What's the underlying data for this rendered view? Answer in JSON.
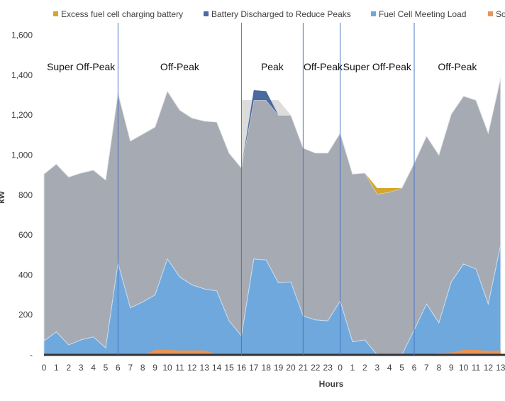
{
  "chart_data": {
    "type": "area",
    "xlabel": "Hours",
    "ylabel": "kW",
    "ylim": [
      0,
      1700
    ],
    "yticks": [
      0,
      200,
      400,
      600,
      800,
      1000,
      1200,
      1400,
      1600
    ],
    "ytick_labels": [
      "-",
      "200",
      "400",
      "600",
      "800",
      "1,000",
      "1,200",
      "1,400",
      "1,600"
    ],
    "grid": false,
    "legend_position": "top",
    "x": [
      "0",
      "1",
      "2",
      "3",
      "4",
      "5",
      "6",
      "7",
      "8",
      "9",
      "10",
      "11",
      "12",
      "13",
      "14",
      "15",
      "16",
      "17",
      "18",
      "19",
      "20",
      "21",
      "22",
      "23",
      "0",
      "1",
      "2",
      "3",
      "4",
      "5",
      "6",
      "7",
      "8",
      "9",
      "10",
      "11",
      "12",
      "13"
    ],
    "series": [
      {
        "name": "Excess fuel cell charging battery",
        "color": "#d4a72c",
        "values": [
          0,
          0,
          0,
          0,
          0,
          0,
          0,
          0,
          0,
          0,
          0,
          0,
          0,
          0,
          0,
          0,
          0,
          0,
          0,
          0,
          0,
          0,
          0,
          0,
          0,
          0,
          0,
          30,
          20,
          0,
          0,
          0,
          0,
          0,
          0,
          0,
          0,
          0
        ]
      },
      {
        "name": "Battery Discharged to Reduce Peaks",
        "color": "#4a6aa0",
        "values": [
          0,
          0,
          0,
          0,
          0,
          0,
          0,
          0,
          0,
          0,
          0,
          0,
          0,
          0,
          0,
          0,
          0,
          50,
          45,
          0,
          0,
          0,
          0,
          0,
          0,
          0,
          0,
          0,
          0,
          0,
          0,
          0,
          0,
          0,
          0,
          0,
          0,
          0
        ]
      },
      {
        "name": "Fuel Cell Meeting Load",
        "color": "#6fa8dc",
        "values": [
          70,
          115,
          50,
          75,
          90,
          35,
          460,
          235,
          265,
          300,
          480,
          390,
          350,
          330,
          320,
          170,
          95,
          480,
          475,
          360,
          365,
          195,
          175,
          170,
          270,
          65,
          75,
          0,
          0,
          0,
          125,
          255,
          160,
          365,
          455,
          430,
          255,
          550
        ]
      },
      {
        "name": "Solar",
        "color": "#e8955a",
        "values": [
          0,
          0,
          0,
          0,
          0,
          0,
          0,
          0,
          0,
          25,
          25,
          22,
          22,
          22,
          5,
          5,
          0,
          0,
          0,
          0,
          0,
          0,
          0,
          0,
          0,
          0,
          0,
          0,
          0,
          0,
          0,
          0,
          10,
          12,
          25,
          25,
          20,
          22
        ]
      }
    ],
    "total_load": [
      905,
      955,
      890,
      910,
      925,
      875,
      1310,
      1070,
      1105,
      1140,
      1320,
      1225,
      1185,
      1170,
      1165,
      1010,
      935,
      1275,
      1275,
      1200,
      1200,
      1035,
      1010,
      1010,
      1110,
      905,
      910,
      805,
      815,
      835,
      960,
      1095,
      1000,
      1205,
      1295,
      1275,
      1110,
      1385
    ],
    "demand_limit": [
      null,
      null,
      null,
      null,
      null,
      null,
      null,
      null,
      null,
      null,
      null,
      null,
      null,
      null,
      null,
      null,
      1275,
      1275,
      1275,
      1275,
      1200,
      null,
      null,
      null,
      null,
      null,
      null,
      null,
      null,
      null,
      null,
      null,
      null,
      null,
      null,
      null,
      null,
      null
    ],
    "period_dividers": [
      6,
      16,
      21,
      24,
      30
    ],
    "periods": [
      {
        "label": "Super Off-Peak",
        "start": 0,
        "end": 6
      },
      {
        "label": "Off-Peak",
        "start": 6,
        "end": 16
      },
      {
        "label": "Peak",
        "start": 16,
        "end": 21
      },
      {
        "label": "Off-Peak",
        "start": 21,
        "end": 24
      },
      {
        "label": "Super Off-Peak",
        "start": 24,
        "end": 30
      },
      {
        "label": "Off-Peak",
        "start": 30,
        "end": 37
      }
    ]
  }
}
